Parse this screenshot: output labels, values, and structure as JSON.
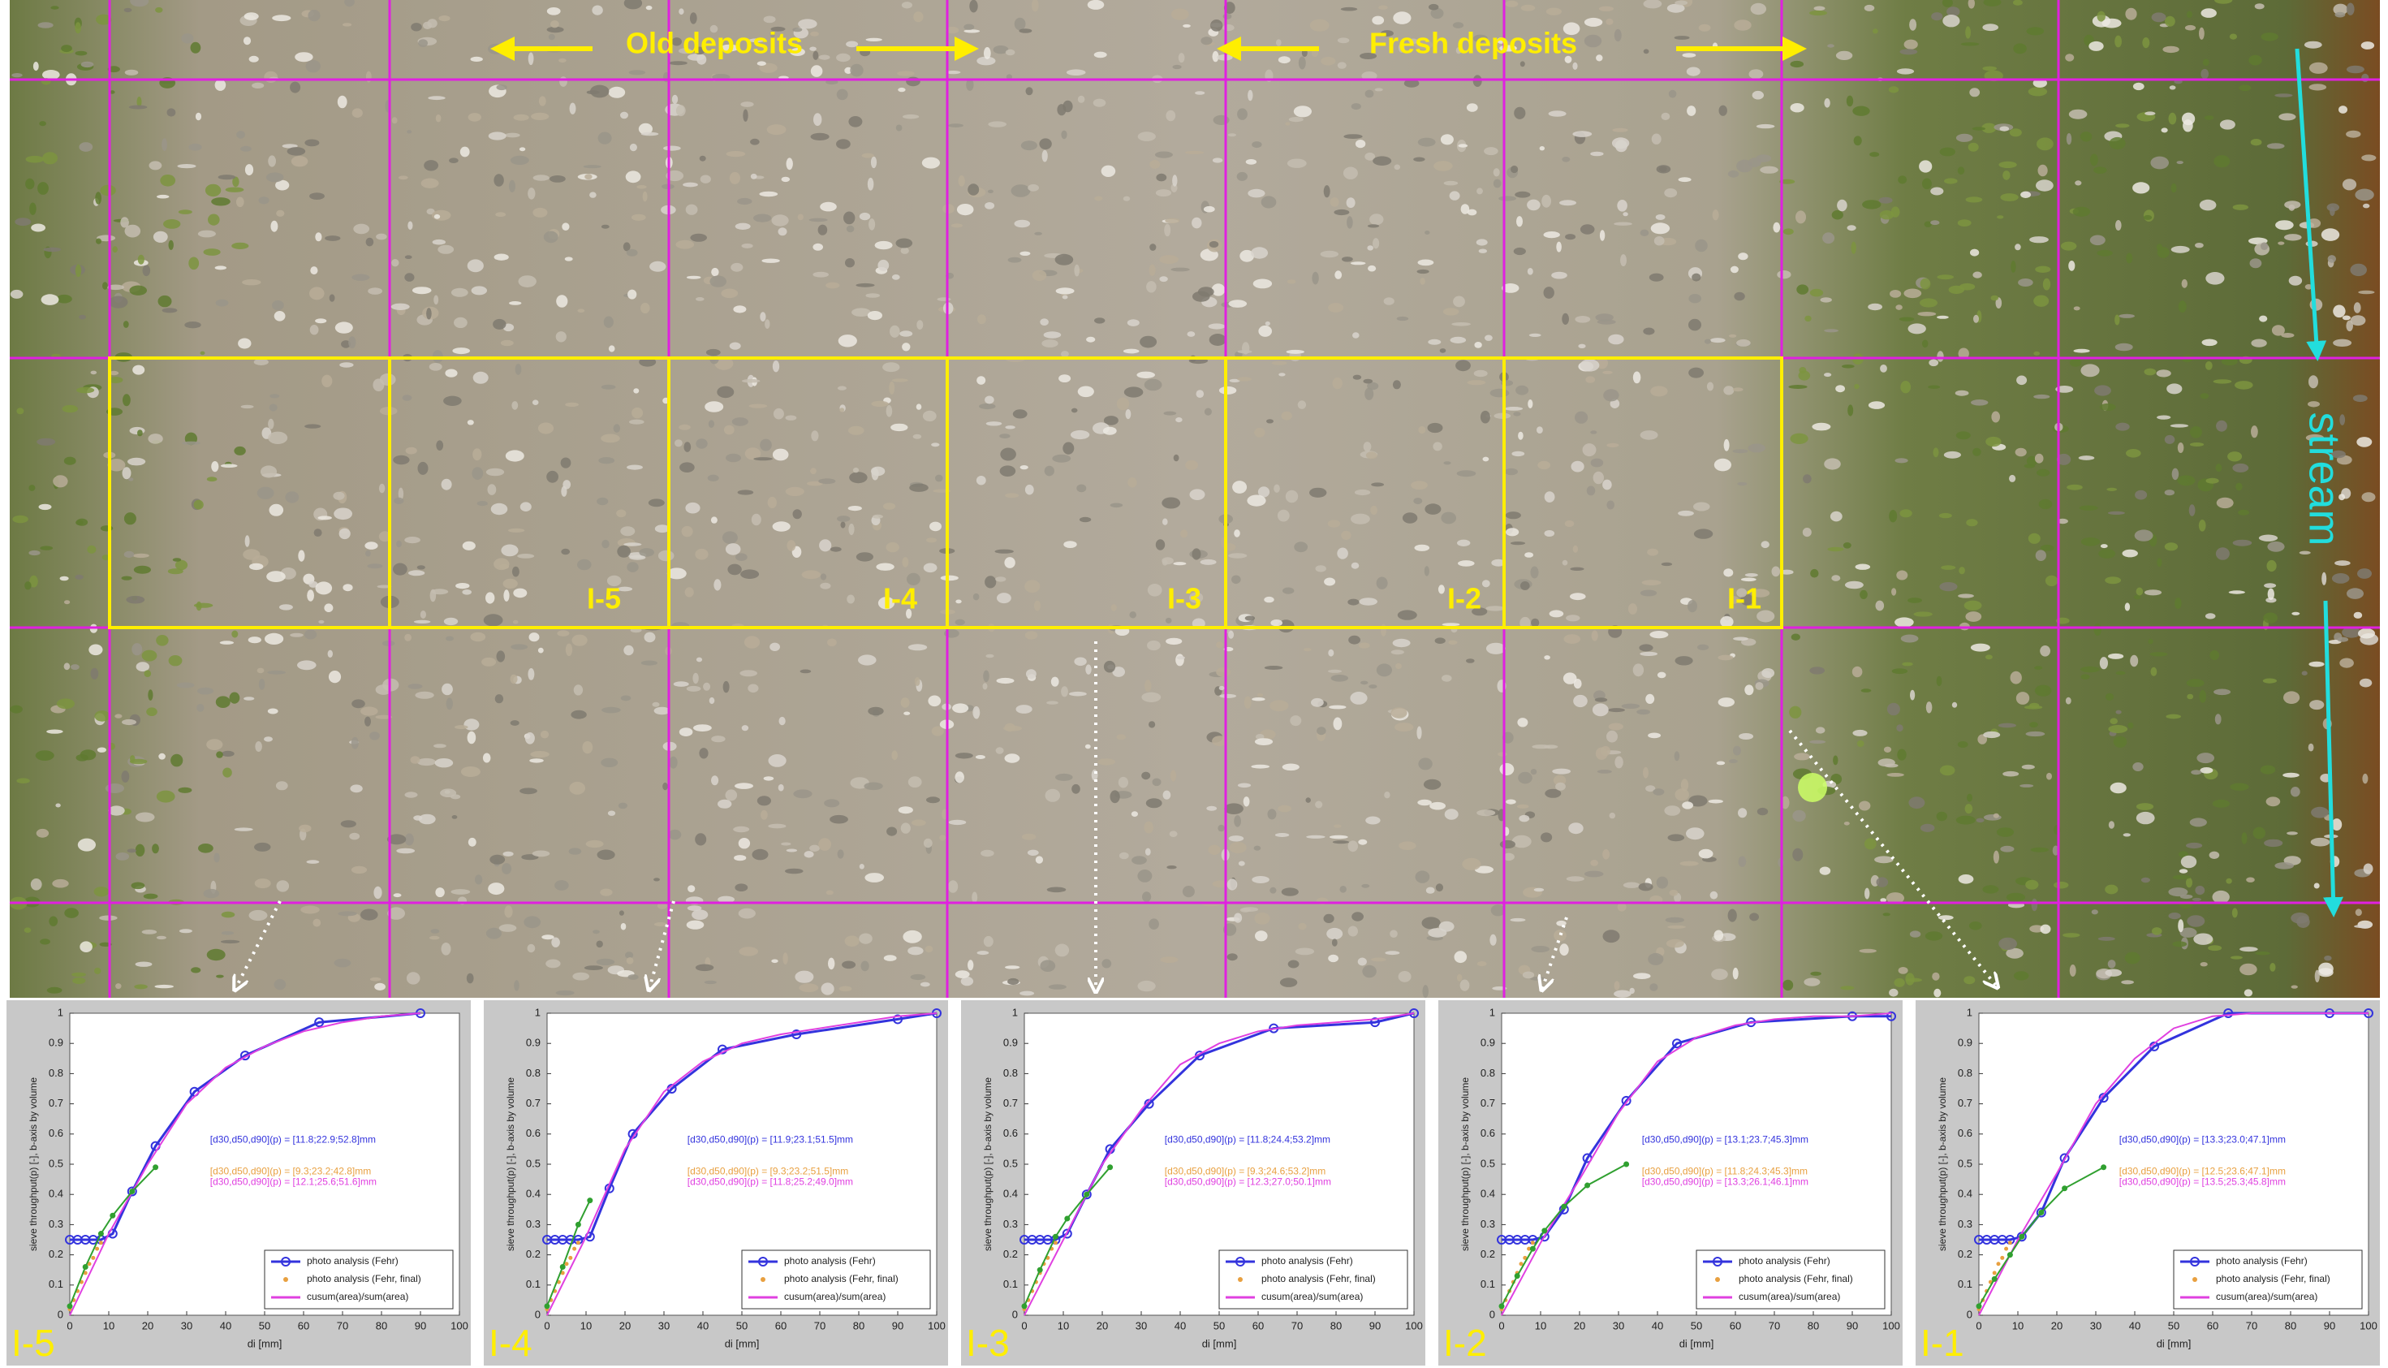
{
  "photo": {
    "left_label": "Old deposits",
    "right_label": "Fresh deposits",
    "stream_label": "stream",
    "boxes": [
      "I-5",
      "I-4",
      "I-3",
      "I-2",
      "I-1"
    ]
  },
  "chart_data": [
    {
      "type": "line",
      "panel_label": "I-5",
      "xlabel": "di [mm]",
      "ylabel": "sieve throughput(p) [-], b-axis by volume",
      "xlim": [
        0,
        100
      ],
      "ylim": [
        0,
        1
      ],
      "xticks": [
        0,
        10,
        20,
        30,
        40,
        50,
        60,
        70,
        80,
        90,
        100
      ],
      "yticks": [
        0,
        0.1,
        0.2,
        0.3,
        0.4,
        0.5,
        0.6,
        0.7,
        0.8,
        0.9,
        1
      ],
      "annotations": [
        "[d30,d50,d90](p) = [11.8;22.9;52.8]mm",
        "[d30,d50,d90](p) = [9.3;23.2;42.8]mm",
        "[d30,d50,d90](p) = [12.1;25.6;51.6]mm"
      ],
      "series": [
        {
          "name": "photo analysis (Fehr)",
          "color": "#3333dd",
          "x": [
            0,
            2,
            4,
            6,
            8,
            11,
            16,
            22,
            32,
            45,
            64,
            90
          ],
          "values": [
            0.25,
            0.25,
            0.25,
            0.25,
            0.25,
            0.27,
            0.41,
            0.56,
            0.74,
            0.86,
            0.97,
            1.0
          ]
        },
        {
          "name": "photo analysis (Fehr, final)",
          "color": "#e8a040",
          "x": [
            0,
            1,
            2,
            3,
            4,
            5,
            6,
            7,
            8
          ],
          "values": [
            0.02,
            0.05,
            0.08,
            0.11,
            0.14,
            0.17,
            0.19,
            0.22,
            0.24
          ]
        },
        {
          "name": "cusum(area)/sum(area)",
          "color": "#e040e0",
          "x": [
            0,
            10,
            20,
            30,
            40,
            50,
            60,
            70,
            80,
            90
          ],
          "values": [
            0,
            0.27,
            0.5,
            0.7,
            0.82,
            0.89,
            0.94,
            0.97,
            0.99,
            1.0
          ]
        },
        {
          "color": "#30a030",
          "x": [
            0,
            4,
            8,
            11,
            16,
            22
          ],
          "values": [
            0.03,
            0.16,
            0.27,
            0.33,
            0.41,
            0.49
          ]
        }
      ]
    },
    {
      "type": "line",
      "panel_label": "I-4",
      "xlabel": "di [mm]",
      "ylabel": "sieve throughput(p) [-], b-axis by volume",
      "xlim": [
        0,
        100
      ],
      "ylim": [
        0,
        1
      ],
      "xticks": [
        0,
        10,
        20,
        30,
        40,
        50,
        60,
        70,
        80,
        90,
        100
      ],
      "yticks": [
        0,
        0.1,
        0.2,
        0.3,
        0.4,
        0.5,
        0.6,
        0.7,
        0.8,
        0.9,
        1
      ],
      "annotations": [
        "[d30,d50,d90](p) = [11.9;23.1;51.5]mm",
        "[d30,d50,d90](p) = [9.3;23.2;51.5]mm",
        "[d30,d50,d90](p) = [11.8;25.2;49.0]mm"
      ],
      "series": [
        {
          "name": "photo analysis (Fehr)",
          "color": "#3333dd",
          "x": [
            0,
            2,
            4,
            6,
            8,
            11,
            16,
            22,
            32,
            45,
            64,
            90,
            100
          ],
          "values": [
            0.25,
            0.25,
            0.25,
            0.25,
            0.25,
            0.26,
            0.42,
            0.6,
            0.75,
            0.88,
            0.93,
            0.98,
            1.0
          ]
        },
        {
          "name": "photo analysis (Fehr, final)",
          "color": "#e8a040",
          "x": [
            0,
            1,
            2,
            3,
            4,
            5,
            6,
            7,
            8
          ],
          "values": [
            0.02,
            0.05,
            0.08,
            0.11,
            0.14,
            0.17,
            0.19,
            0.22,
            0.24
          ]
        },
        {
          "name": "cusum(area)/sum(area)",
          "color": "#e040e0",
          "x": [
            0,
            10,
            20,
            30,
            40,
            50,
            60,
            70,
            80,
            90,
            100
          ],
          "values": [
            0,
            0.26,
            0.55,
            0.74,
            0.84,
            0.9,
            0.93,
            0.95,
            0.97,
            0.99,
            1.0
          ]
        },
        {
          "color": "#30a030",
          "x": [
            0,
            4,
            8,
            11
          ],
          "values": [
            0.03,
            0.16,
            0.3,
            0.38
          ]
        }
      ]
    },
    {
      "type": "line",
      "panel_label": "I-3",
      "xlabel": "di [mm]",
      "ylabel": "sieve throughput(p) [-], b-axis by volume",
      "xlim": [
        0,
        100
      ],
      "ylim": [
        0,
        1
      ],
      "xticks": [
        0,
        10,
        20,
        30,
        40,
        50,
        60,
        70,
        80,
        90,
        100
      ],
      "yticks": [
        0,
        0.1,
        0.2,
        0.3,
        0.4,
        0.5,
        0.6,
        0.7,
        0.8,
        0.9,
        1
      ],
      "annotations": [
        "[d30,d50,d90](p) = [11.8;24.4;53.2]mm",
        "[d30,d50,d90](p) = [9.3;24.6;53.2]mm",
        "[d30,d50,d90](p) = [12.3;27.0;50.1]mm"
      ],
      "series": [
        {
          "name": "photo analysis (Fehr)",
          "color": "#3333dd",
          "x": [
            0,
            2,
            4,
            6,
            8,
            11,
            16,
            22,
            32,
            45,
            64,
            90,
            100
          ],
          "values": [
            0.25,
            0.25,
            0.25,
            0.25,
            0.25,
            0.27,
            0.4,
            0.55,
            0.7,
            0.86,
            0.95,
            0.97,
            1.0
          ]
        },
        {
          "name": "photo analysis (Fehr, final)",
          "color": "#e8a040",
          "x": [
            0,
            1,
            2,
            3,
            4,
            5,
            6,
            7,
            8
          ],
          "values": [
            0.02,
            0.05,
            0.08,
            0.11,
            0.14,
            0.17,
            0.19,
            0.22,
            0.24
          ]
        },
        {
          "name": "cusum(area)/sum(area)",
          "color": "#e040e0",
          "x": [
            0,
            10,
            20,
            30,
            40,
            50,
            60,
            70,
            80,
            90,
            100
          ],
          "values": [
            0,
            0.25,
            0.5,
            0.68,
            0.83,
            0.9,
            0.94,
            0.96,
            0.97,
            0.98,
            1.0
          ]
        },
        {
          "color": "#30a030",
          "x": [
            0,
            4,
            8,
            11,
            16,
            22
          ],
          "values": [
            0.03,
            0.15,
            0.26,
            0.32,
            0.4,
            0.49
          ]
        }
      ]
    },
    {
      "type": "line",
      "panel_label": "I-2",
      "xlabel": "di [mm]",
      "ylabel": "sieve throughput(p) [-], b-axis by volume",
      "xlim": [
        0,
        100
      ],
      "ylim": [
        0,
        1
      ],
      "xticks": [
        0,
        10,
        20,
        30,
        40,
        50,
        60,
        70,
        80,
        90,
        100
      ],
      "yticks": [
        0,
        0.1,
        0.2,
        0.3,
        0.4,
        0.5,
        0.6,
        0.7,
        0.8,
        0.9,
        1
      ],
      "annotations": [
        "[d30,d50,d90](p) = [13.1;23.7;45.3]mm",
        "[d30,d50,d90](p) = [11.8;24.3;45.3]mm",
        "[d30,d50,d90](p) = [13.3;26.1;46.1]mm"
      ],
      "series": [
        {
          "name": "photo analysis (Fehr)",
          "color": "#3333dd",
          "x": [
            0,
            2,
            4,
            6,
            8,
            11,
            16,
            22,
            32,
            45,
            64,
            90,
            100
          ],
          "values": [
            0.25,
            0.25,
            0.25,
            0.25,
            0.25,
            0.26,
            0.35,
            0.52,
            0.71,
            0.9,
            0.97,
            0.99,
            0.99
          ]
        },
        {
          "name": "photo analysis (Fehr, final)",
          "color": "#e8a040",
          "x": [
            0,
            1,
            2,
            3,
            4,
            5,
            6,
            7,
            8
          ],
          "values": [
            0.02,
            0.05,
            0.08,
            0.11,
            0.14,
            0.17,
            0.19,
            0.22,
            0.24
          ]
        },
        {
          "name": "cusum(area)/sum(area)",
          "color": "#e040e0",
          "x": [
            0,
            10,
            20,
            30,
            40,
            50,
            60,
            70,
            80,
            90,
            100
          ],
          "values": [
            0,
            0.24,
            0.45,
            0.67,
            0.84,
            0.92,
            0.96,
            0.98,
            0.99,
            0.99,
            1.0
          ]
        },
        {
          "color": "#30a030",
          "x": [
            0,
            4,
            8,
            11,
            16,
            22,
            32
          ],
          "values": [
            0.03,
            0.13,
            0.22,
            0.28,
            0.36,
            0.43,
            0.5
          ]
        }
      ]
    },
    {
      "type": "line",
      "panel_label": "I-1",
      "xlabel": "di [mm]",
      "ylabel": "sieve throughput(p) [-], b-axis by volume",
      "xlim": [
        0,
        100
      ],
      "ylim": [
        0,
        1
      ],
      "xticks": [
        0,
        10,
        20,
        30,
        40,
        50,
        60,
        70,
        80,
        90,
        100
      ],
      "yticks": [
        0,
        0.1,
        0.2,
        0.3,
        0.4,
        0.5,
        0.6,
        0.7,
        0.8,
        0.9,
        1
      ],
      "annotations": [
        "[d30,d50,d90](p) = [13.3;23.0;47.1]mm",
        "[d30,d50,d90](p) = [12.5;23.6;47.1]mm",
        "[d30,d50,d90](p) = [13.5;25.3;45.8]mm"
      ],
      "series": [
        {
          "name": "photo analysis (Fehr)",
          "color": "#3333dd",
          "x": [
            0,
            2,
            4,
            6,
            8,
            11,
            16,
            22,
            32,
            45,
            64,
            90,
            100
          ],
          "values": [
            0.25,
            0.25,
            0.25,
            0.25,
            0.25,
            0.26,
            0.34,
            0.52,
            0.72,
            0.89,
            1.0,
            1.0,
            1.0
          ]
        },
        {
          "name": "photo analysis (Fehr, final)",
          "color": "#e8a040",
          "x": [
            0,
            1,
            2,
            3,
            4,
            5,
            6,
            7,
            8
          ],
          "values": [
            0.02,
            0.05,
            0.08,
            0.11,
            0.14,
            0.17,
            0.19,
            0.22,
            0.24
          ]
        },
        {
          "name": "cusum(area)/sum(area)",
          "color": "#e040e0",
          "x": [
            0,
            10,
            20,
            30,
            40,
            50,
            60,
            70,
            80,
            90,
            100
          ],
          "values": [
            0,
            0.25,
            0.47,
            0.7,
            0.85,
            0.95,
            0.99,
            1.0,
            1.0,
            1.0,
            1.0
          ]
        },
        {
          "color": "#30a030",
          "x": [
            0,
            4,
            8,
            11,
            16,
            22,
            32
          ],
          "values": [
            0.03,
            0.12,
            0.2,
            0.26,
            0.34,
            0.42,
            0.49
          ]
        }
      ]
    }
  ]
}
